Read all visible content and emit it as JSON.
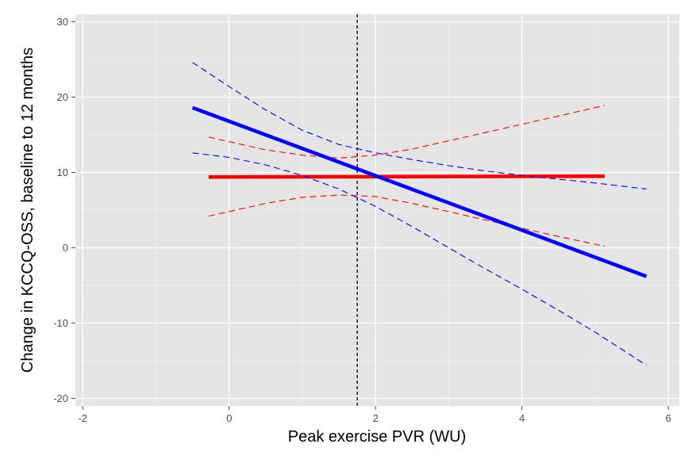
{
  "chart_data": {
    "type": "line",
    "title": "",
    "xlabel": "Peak exercise PVR (WU)",
    "ylabel": "Change in KCCQ-OSS, baseline to 12 months",
    "xlim": [
      -2.1,
      6.15
    ],
    "ylim": [
      -21,
      31
    ],
    "xticks": [
      -2,
      0,
      2,
      4,
      6
    ],
    "yticks": [
      -20,
      -10,
      0,
      10,
      20,
      30
    ],
    "xtick_labels": [
      "-2",
      "0",
      "2",
      "4",
      "6"
    ],
    "ytick_labels": [
      "-20",
      "-10",
      "0",
      "10",
      "20",
      "30"
    ],
    "grid": true,
    "panel_background": "#e5e5e5",
    "grid_color": "#ffffff",
    "reference_line": {
      "x": 1.75,
      "style": "dashed",
      "color": "#000000"
    },
    "series": [
      {
        "name": "red fit",
        "color": "#ff0000",
        "style": "solid",
        "x": [
          -0.28,
          5.13
        ],
        "values": [
          9.4,
          9.5
        ]
      },
      {
        "name": "red lower CI",
        "color": "#ff0000",
        "style": "dashed",
        "x": [
          -0.28,
          0.5,
          1.0,
          1.5,
          2.0,
          2.5,
          3.0,
          3.5,
          4.0,
          4.5,
          5.13
        ],
        "values": [
          4.2,
          5.9,
          6.7,
          7.0,
          6.8,
          5.9,
          4.8,
          3.7,
          2.6,
          1.5,
          0.2
        ]
      },
      {
        "name": "red upper CI",
        "color": "#ff0000",
        "style": "dashed",
        "x": [
          -0.28,
          0.5,
          1.0,
          1.5,
          2.0,
          2.5,
          3.0,
          3.5,
          4.0,
          4.5,
          5.13
        ],
        "values": [
          14.7,
          13.0,
          12.3,
          11.9,
          12.3,
          13.1,
          14.2,
          15.3,
          16.4,
          17.5,
          18.9
        ]
      },
      {
        "name": "blue fit",
        "color": "#0000ff",
        "style": "solid",
        "x": [
          -0.5,
          5.7
        ],
        "values": [
          18.6,
          -3.8
        ]
      },
      {
        "name": "blue lower CI",
        "color": "#0000ff",
        "style": "dashed",
        "x": [
          -0.5,
          0.0,
          0.5,
          1.0,
          1.5,
          2.0,
          2.5,
          3.0,
          3.5,
          4.0,
          4.5,
          5.0,
          5.7
        ],
        "values": [
          12.6,
          12.0,
          11.0,
          9.6,
          7.8,
          5.5,
          2.8,
          0.0,
          -2.8,
          -5.5,
          -8.3,
          -11.2,
          -15.6
        ]
      },
      {
        "name": "blue upper CI",
        "color": "#0000ff",
        "style": "dashed",
        "x": [
          -0.5,
          0.0,
          0.5,
          1.0,
          1.5,
          2.0,
          2.5,
          3.0,
          3.5,
          4.0,
          4.5,
          5.0,
          5.7
        ],
        "values": [
          24.6,
          21.4,
          18.3,
          15.6,
          13.7,
          12.6,
          11.7,
          10.9,
          10.2,
          9.6,
          9.1,
          8.6,
          7.8
        ]
      }
    ]
  }
}
